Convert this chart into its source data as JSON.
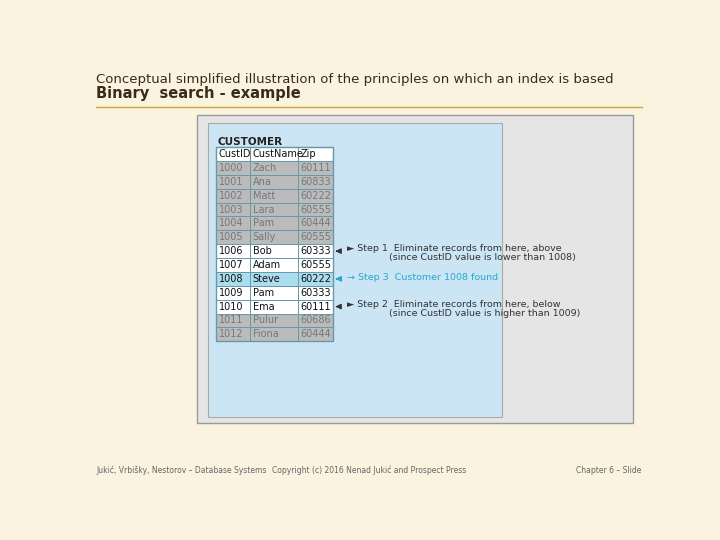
{
  "title_line1": "Conceptual simplified illustration of the principles on which an index is based",
  "title_line2": "Binary  search - example",
  "bg_color": "#faf3e0",
  "separator_color": "#c8a830",
  "outer_box_bg": "#e8e8e8",
  "inner_box_bg": "#cce5f5",
  "table_border_color": "#6699aa",
  "step1_row": 6,
  "step2_row": 10,
  "step3_row": 8,
  "rows": [
    [
      "1000",
      "Zach",
      "60111"
    ],
    [
      "1001",
      "Ana",
      "60833"
    ],
    [
      "1002",
      "Matt",
      "60222"
    ],
    [
      "1003",
      "Lara",
      "60555"
    ],
    [
      "1004",
      "Pam",
      "60444"
    ],
    [
      "1005",
      "Sally",
      "60555"
    ],
    [
      "1006",
      "Bob",
      "60333"
    ],
    [
      "1007",
      "Adam",
      "60555"
    ],
    [
      "1008",
      "Steve",
      "60222"
    ],
    [
      "1009",
      "Pam",
      "60333"
    ],
    [
      "1010",
      "Ema",
      "60111"
    ],
    [
      "1011",
      "Pulur",
      "60686"
    ],
    [
      "1012",
      "Fiona",
      "60444"
    ]
  ],
  "footer_left": "Jukić, Vrbišky, Nestorov – Database Systems",
  "footer_center": "Copyright (c) 2016 Nenad Jukić and Prospect Press",
  "footer_right": "Chapter 6 – Slide",
  "step1_text_line1": "► Step 1  Eliminate records from here, above",
  "step1_text_line2": "              (since CustID value is lower than 1008)",
  "step2_text_line1": "► Step 2  Eliminate records from here, below",
  "step2_text_line2": "              (since CustID value is higher than 1009)",
  "step3_text": "→ Step 3  Customer 1008 found",
  "step3_color": "#22aacc"
}
